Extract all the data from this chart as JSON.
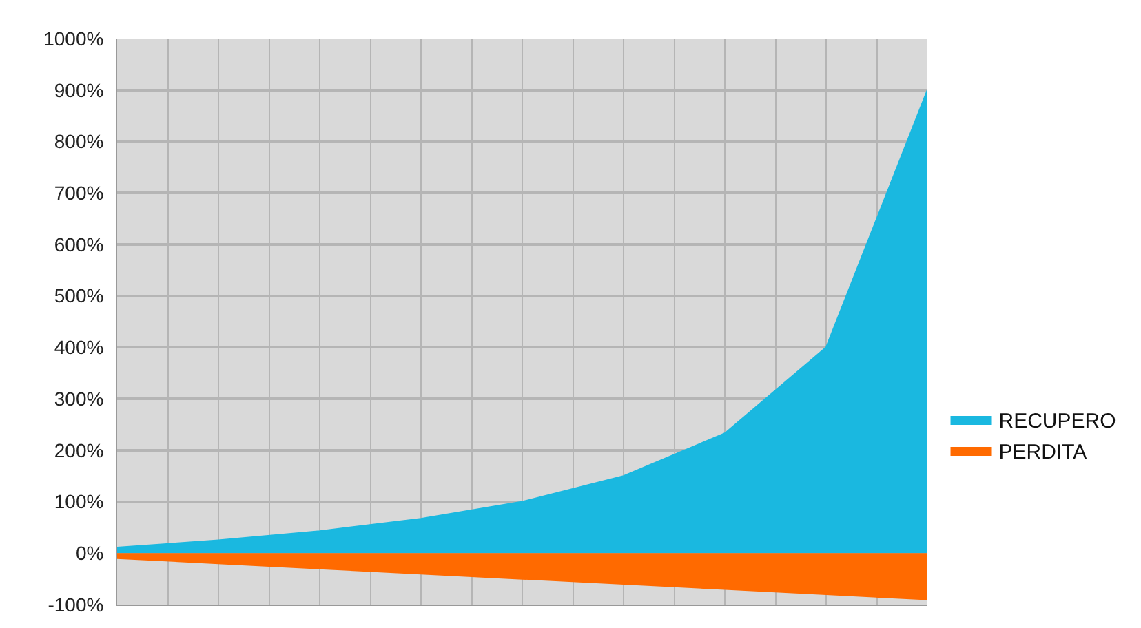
{
  "chart_data": {
    "type": "area",
    "categories": [
      null,
      null,
      null,
      null,
      null,
      null,
      null,
      null,
      null
    ],
    "series": [
      {
        "name": "RECUPERO",
        "color": "#1ab8e0",
        "values": [
          11,
          25,
          43,
          67,
          100,
          150,
          233,
          400,
          900
        ]
      },
      {
        "name": "PERDITA",
        "color": "#ff6a00",
        "values": [
          -10,
          -20,
          -30,
          -40,
          -50,
          -60,
          -70,
          -80,
          -90
        ]
      }
    ],
    "ylim": [
      -100,
      1000
    ],
    "yticks": [
      {
        "value": -100,
        "label": "-100%"
      },
      {
        "value": 0,
        "label": "0%"
      },
      {
        "value": 100,
        "label": "100%"
      },
      {
        "value": 200,
        "label": "200%"
      },
      {
        "value": 300,
        "label": "300%"
      },
      {
        "value": 400,
        "label": "400%"
      },
      {
        "value": 500,
        "label": "500%"
      },
      {
        "value": 600,
        "label": "600%"
      },
      {
        "value": 700,
        "label": "700%"
      },
      {
        "value": 800,
        "label": "800%"
      },
      {
        "value": 900,
        "label": "900%"
      },
      {
        "value": 1000,
        "label": "1000%"
      }
    ],
    "tick_labels": "y",
    "grid": true,
    "legend": "right"
  }
}
